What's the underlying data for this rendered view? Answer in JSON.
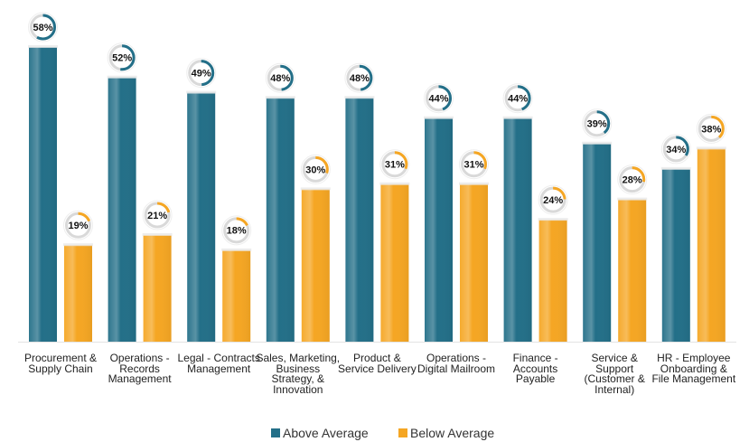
{
  "chart_data": {
    "type": "bar",
    "categories": [
      "Procurement & Supply Chain",
      "Operations - Records Management",
      "Legal - Contracts Management",
      "Sales, Marketing, Business Strategy, & Innovation",
      "Product & Service Delivery",
      "Operations - Digital Mailroom",
      "Finance - Accounts Payable",
      "Service & Support (Customer & Internal)",
      "HR - Employee Onboarding & File Management"
    ],
    "series": [
      {
        "name": "Above Average",
        "color": "#236f88",
        "values": [
          58,
          52,
          49,
          48,
          48,
          44,
          44,
          39,
          34
        ],
        "value_labels": [
          "58%",
          "52%",
          "49%",
          "48%",
          "48%",
          "44%",
          "44%",
          "39%",
          "34%"
        ]
      },
      {
        "name": "Below Average",
        "color": "#f5a623",
        "values": [
          19,
          21,
          18,
          30,
          31,
          31,
          24,
          28,
          38
        ],
        "value_labels": [
          "19%",
          "21%",
          "18%",
          "30%",
          "31%",
          "31%",
          "24%",
          "28%",
          "38%"
        ]
      }
    ],
    "legend": "bottom"
  }
}
